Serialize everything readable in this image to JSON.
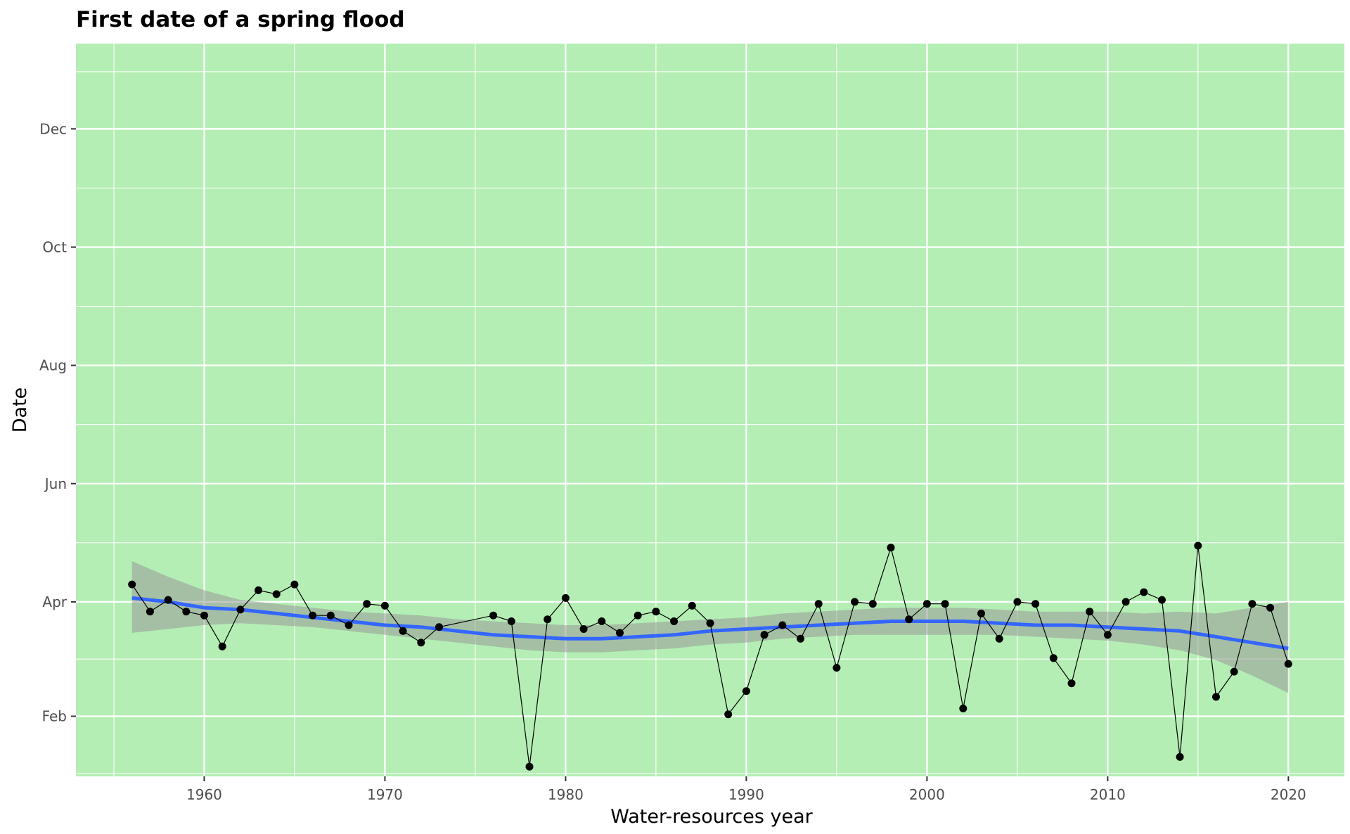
{
  "chart_data": {
    "type": "line",
    "title": "First date of a spring flood",
    "xlabel": "Water-resources year",
    "ylabel": "Date",
    "x_ticks": [
      1960,
      1970,
      1980,
      1990,
      2000,
      2010,
      2020
    ],
    "x_tick_labels": [
      "1960",
      "1970",
      "1980",
      "1990",
      "2000",
      "2010",
      "2020"
    ],
    "y_ticks": [
      "Feb",
      "Apr",
      "Jun",
      "Aug",
      "Oct",
      "Dec"
    ],
    "xlim": [
      1952.9,
      2023.1
    ],
    "ylim": [
      "Jan 1",
      "Jan 14"
    ],
    "grid": true,
    "panel_background": "#b4eeb4",
    "grid_color": "#ffffff",
    "point_color": "#000000",
    "smooth_color": "#3366ff",
    "ribbon_color": "#999999",
    "series": [
      {
        "x": [
          1956,
          1957,
          1958,
          1959,
          1960,
          1961,
          1962,
          1963,
          1964,
          1965,
          1966,
          1967,
          1968,
          1969,
          1970,
          1971,
          1972,
          1973,
          1976,
          1977,
          1978,
          1979,
          1980,
          1981,
          1982,
          1983,
          1984,
          1985,
          1986,
          1987,
          1988,
          1989,
          1990,
          1991,
          1992,
          1993,
          1994,
          1995,
          1996,
          1997,
          1998,
          1999,
          2000,
          2001,
          2002,
          2003,
          2004,
          2005,
          2006,
          2007,
          2008,
          2009,
          2010,
          2011,
          2012,
          2013,
          2014,
          2015,
          2016,
          2017,
          2018,
          2019,
          2020
        ],
        "y": [
          "Apr 10",
          "Mar 27",
          "Apr 2",
          "Mar 27",
          "Mar 25",
          "Mar 9",
          "Mar 28",
          "Apr 7",
          "Apr 5",
          "Apr 10",
          "Mar 25",
          "Mar 25",
          "Mar 20",
          "Mar 31",
          "Mar 30",
          "Mar 17",
          "Mar 11",
          "Mar 19",
          "Mar 25",
          "Mar 22",
          "Jan 6",
          "Mar 23",
          "Apr 3",
          "Mar 18",
          "Mar 22",
          "Mar 16",
          "Mar 25",
          "Mar 27",
          "Mar 22",
          "Mar 30",
          "Mar 21",
          "Feb 2",
          "Feb 14",
          "Mar 15",
          "Mar 20",
          "Mar 13",
          "Mar 31",
          "Feb 26",
          "Apr 1",
          "Mar 31",
          "Apr 29",
          "Mar 23",
          "Mar 31",
          "Mar 31",
          "Feb 5",
          "Mar 26",
          "Mar 13",
          "Apr 1",
          "Mar 31",
          "Mar 3",
          "Feb 18",
          "Mar 27",
          "Mar 15",
          "Apr 1",
          "Apr 6",
          "Apr 2",
          "Jan 11",
          "Apr 30",
          "Feb 11",
          "Feb 24",
          "Mar 31",
          "Mar 29",
          "Feb 28"
        ]
      }
    ],
    "smooth": {
      "x": [
        1956,
        1958,
        1960,
        1962,
        1964,
        1966,
        1968,
        1970,
        1972,
        1974,
        1976,
        1978,
        1980,
        1982,
        1984,
        1986,
        1988,
        1990,
        1992,
        1994,
        1996,
        1998,
        2000,
        2002,
        2004,
        2006,
        2008,
        2010,
        2012,
        2014,
        2016,
        2018,
        2020
      ],
      "y": [
        "Apr 3",
        "Apr 1",
        "Mar 29",
        "Mar 28",
        "Mar 26",
        "Mar 24",
        "Mar 22",
        "Mar 20",
        "Mar 19",
        "Mar 17",
        "Mar 15",
        "Mar 14",
        "Mar 13",
        "Mar 13",
        "Mar 14",
        "Mar 15",
        "Mar 17",
        "Mar 18",
        "Mar 19",
        "Mar 20",
        "Mar 21",
        "Mar 22",
        "Mar 22",
        "Mar 22",
        "Mar 21",
        "Mar 20",
        "Mar 20",
        "Mar 19",
        "Mar 18",
        "Mar 17",
        "Mar 14",
        "Mar 11",
        "Mar 8"
      ],
      "lower": [
        "Mar 16",
        "Mar 18",
        "Mar 20",
        "Mar 21",
        "Mar 20",
        "Mar 19",
        "Mar 17",
        "Mar 15",
        "Mar 13",
        "Mar 11",
        "Mar 9",
        "Mar 7",
        "Mar 6",
        "Mar 6",
        "Mar 7",
        "Mar 8",
        "Mar 10",
        "Mar 11",
        "Mar 13",
        "Mar 14",
        "Mar 15",
        "Mar 15",
        "Mar 15",
        "Mar 15",
        "Mar 15",
        "Mar 14",
        "Mar 13",
        "Mar 12",
        "Mar 10",
        "Mar 7",
        "Mar 2",
        "Feb 22",
        "Feb 13"
      ],
      "upper": [
        "Apr 22",
        "Apr 14",
        "Apr 7",
        "Apr 2",
        "Mar 31",
        "Mar 29",
        "Mar 27",
        "Mar 26",
        "Mar 25",
        "Mar 23",
        "Mar 22",
        "Mar 21",
        "Mar 20",
        "Mar 20",
        "Mar 21",
        "Mar 22",
        "Mar 23",
        "Mar 24",
        "Mar 26",
        "Mar 27",
        "Mar 28",
        "Mar 29",
        "Mar 29",
        "Mar 29",
        "Mar 28",
        "Mar 27",
        "Mar 27",
        "Mar 27",
        "Mar 26",
        "Mar 27",
        "Mar 26",
        "Mar 29",
        "Apr 1"
      ]
    }
  }
}
